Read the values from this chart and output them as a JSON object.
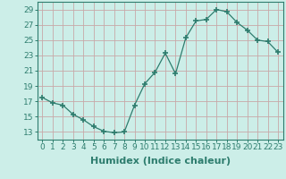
{
  "title": "",
  "xlabel": "Humidex (Indice chaleur)",
  "ylabel": "",
  "x": [
    0,
    1,
    2,
    3,
    4,
    5,
    6,
    7,
    8,
    9,
    10,
    11,
    12,
    13,
    14,
    15,
    16,
    17,
    18,
    19,
    20,
    21,
    22,
    23
  ],
  "y": [
    17.5,
    16.8,
    16.5,
    15.3,
    14.6,
    13.7,
    13.1,
    12.9,
    13.0,
    16.5,
    19.3,
    20.8,
    23.3,
    20.6,
    25.3,
    27.5,
    27.7,
    29.0,
    28.7,
    27.3,
    26.3,
    25.0,
    24.8,
    23.4
  ],
  "ylim": [
    12,
    30
  ],
  "xlim": [
    -0.5,
    23.5
  ],
  "yticks": [
    13,
    15,
    17,
    19,
    21,
    23,
    25,
    27,
    29
  ],
  "xticks": [
    0,
    1,
    2,
    3,
    4,
    5,
    6,
    7,
    8,
    9,
    10,
    11,
    12,
    13,
    14,
    15,
    16,
    17,
    18,
    19,
    20,
    21,
    22,
    23
  ],
  "xtick_labels": [
    "0",
    "1",
    "2",
    "3",
    "4",
    "5",
    "6",
    "7",
    "8",
    "9",
    "10",
    "11",
    "12",
    "13",
    "14",
    "15",
    "16",
    "17",
    "18",
    "19",
    "20",
    "21",
    "22",
    "23"
  ],
  "line_color": "#2e7d6e",
  "marker": "+",
  "marker_size": 5,
  "bg_color": "#cceee8",
  "grid_color": "#c8a8a8",
  "tick_fontsize": 6.5,
  "xlabel_fontsize": 8,
  "xlabel_fontweight": "bold"
}
